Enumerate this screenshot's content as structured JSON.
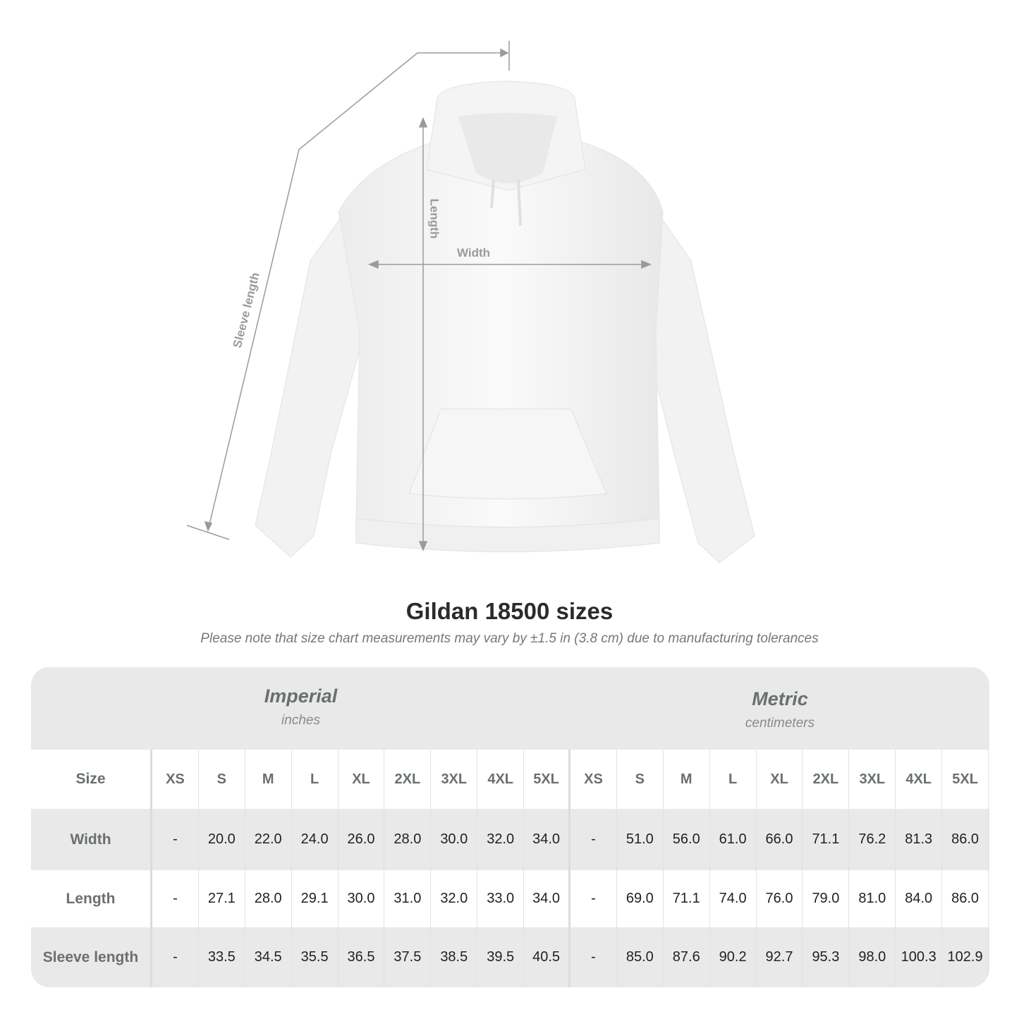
{
  "illustration": {
    "labels": {
      "sleeve": "Sleeve length",
      "length": "Length",
      "width": "Width"
    },
    "colors": {
      "garment": "#ffffff",
      "measure_line": "#9a9a9a"
    }
  },
  "title": "Gildan 18500 sizes",
  "note": "Please note that size chart measurements may vary by ±1.5 in (3.8 cm) due to manufacturing tolerances",
  "table": {
    "imperial": {
      "title": "Imperial",
      "unit": "inches"
    },
    "metric": {
      "title": "Metric",
      "unit": "centimeters"
    },
    "size_label": "Size",
    "sizes": [
      "XS",
      "S",
      "M",
      "L",
      "XL",
      "2XL",
      "3XL",
      "4XL",
      "5XL"
    ],
    "rows": [
      {
        "label": "Width",
        "imperial": [
          "-",
          "20.0",
          "22.0",
          "24.0",
          "26.0",
          "28.0",
          "30.0",
          "32.0",
          "34.0"
        ],
        "metric": [
          "-",
          "51.0",
          "56.0",
          "61.0",
          "66.0",
          "71.1",
          "76.2",
          "81.3",
          "86.0"
        ]
      },
      {
        "label": "Length",
        "imperial": [
          "-",
          "27.1",
          "28.0",
          "29.1",
          "30.0",
          "31.0",
          "32.0",
          "33.0",
          "34.0"
        ],
        "metric": [
          "-",
          "69.0",
          "71.1",
          "74.0",
          "76.0",
          "79.0",
          "81.0",
          "84.0",
          "86.0"
        ]
      },
      {
        "label": "Sleeve length",
        "imperial": [
          "-",
          "33.5",
          "34.5",
          "35.5",
          "36.5",
          "37.5",
          "38.5",
          "39.5",
          "40.5"
        ],
        "metric": [
          "-",
          "85.0",
          "87.6",
          "90.2",
          "92.7",
          "95.3",
          "98.0",
          "100.3",
          "102.9"
        ]
      }
    ],
    "colors": {
      "header_bg": "#e9e9e9",
      "label_text": "#6a6f70"
    }
  }
}
